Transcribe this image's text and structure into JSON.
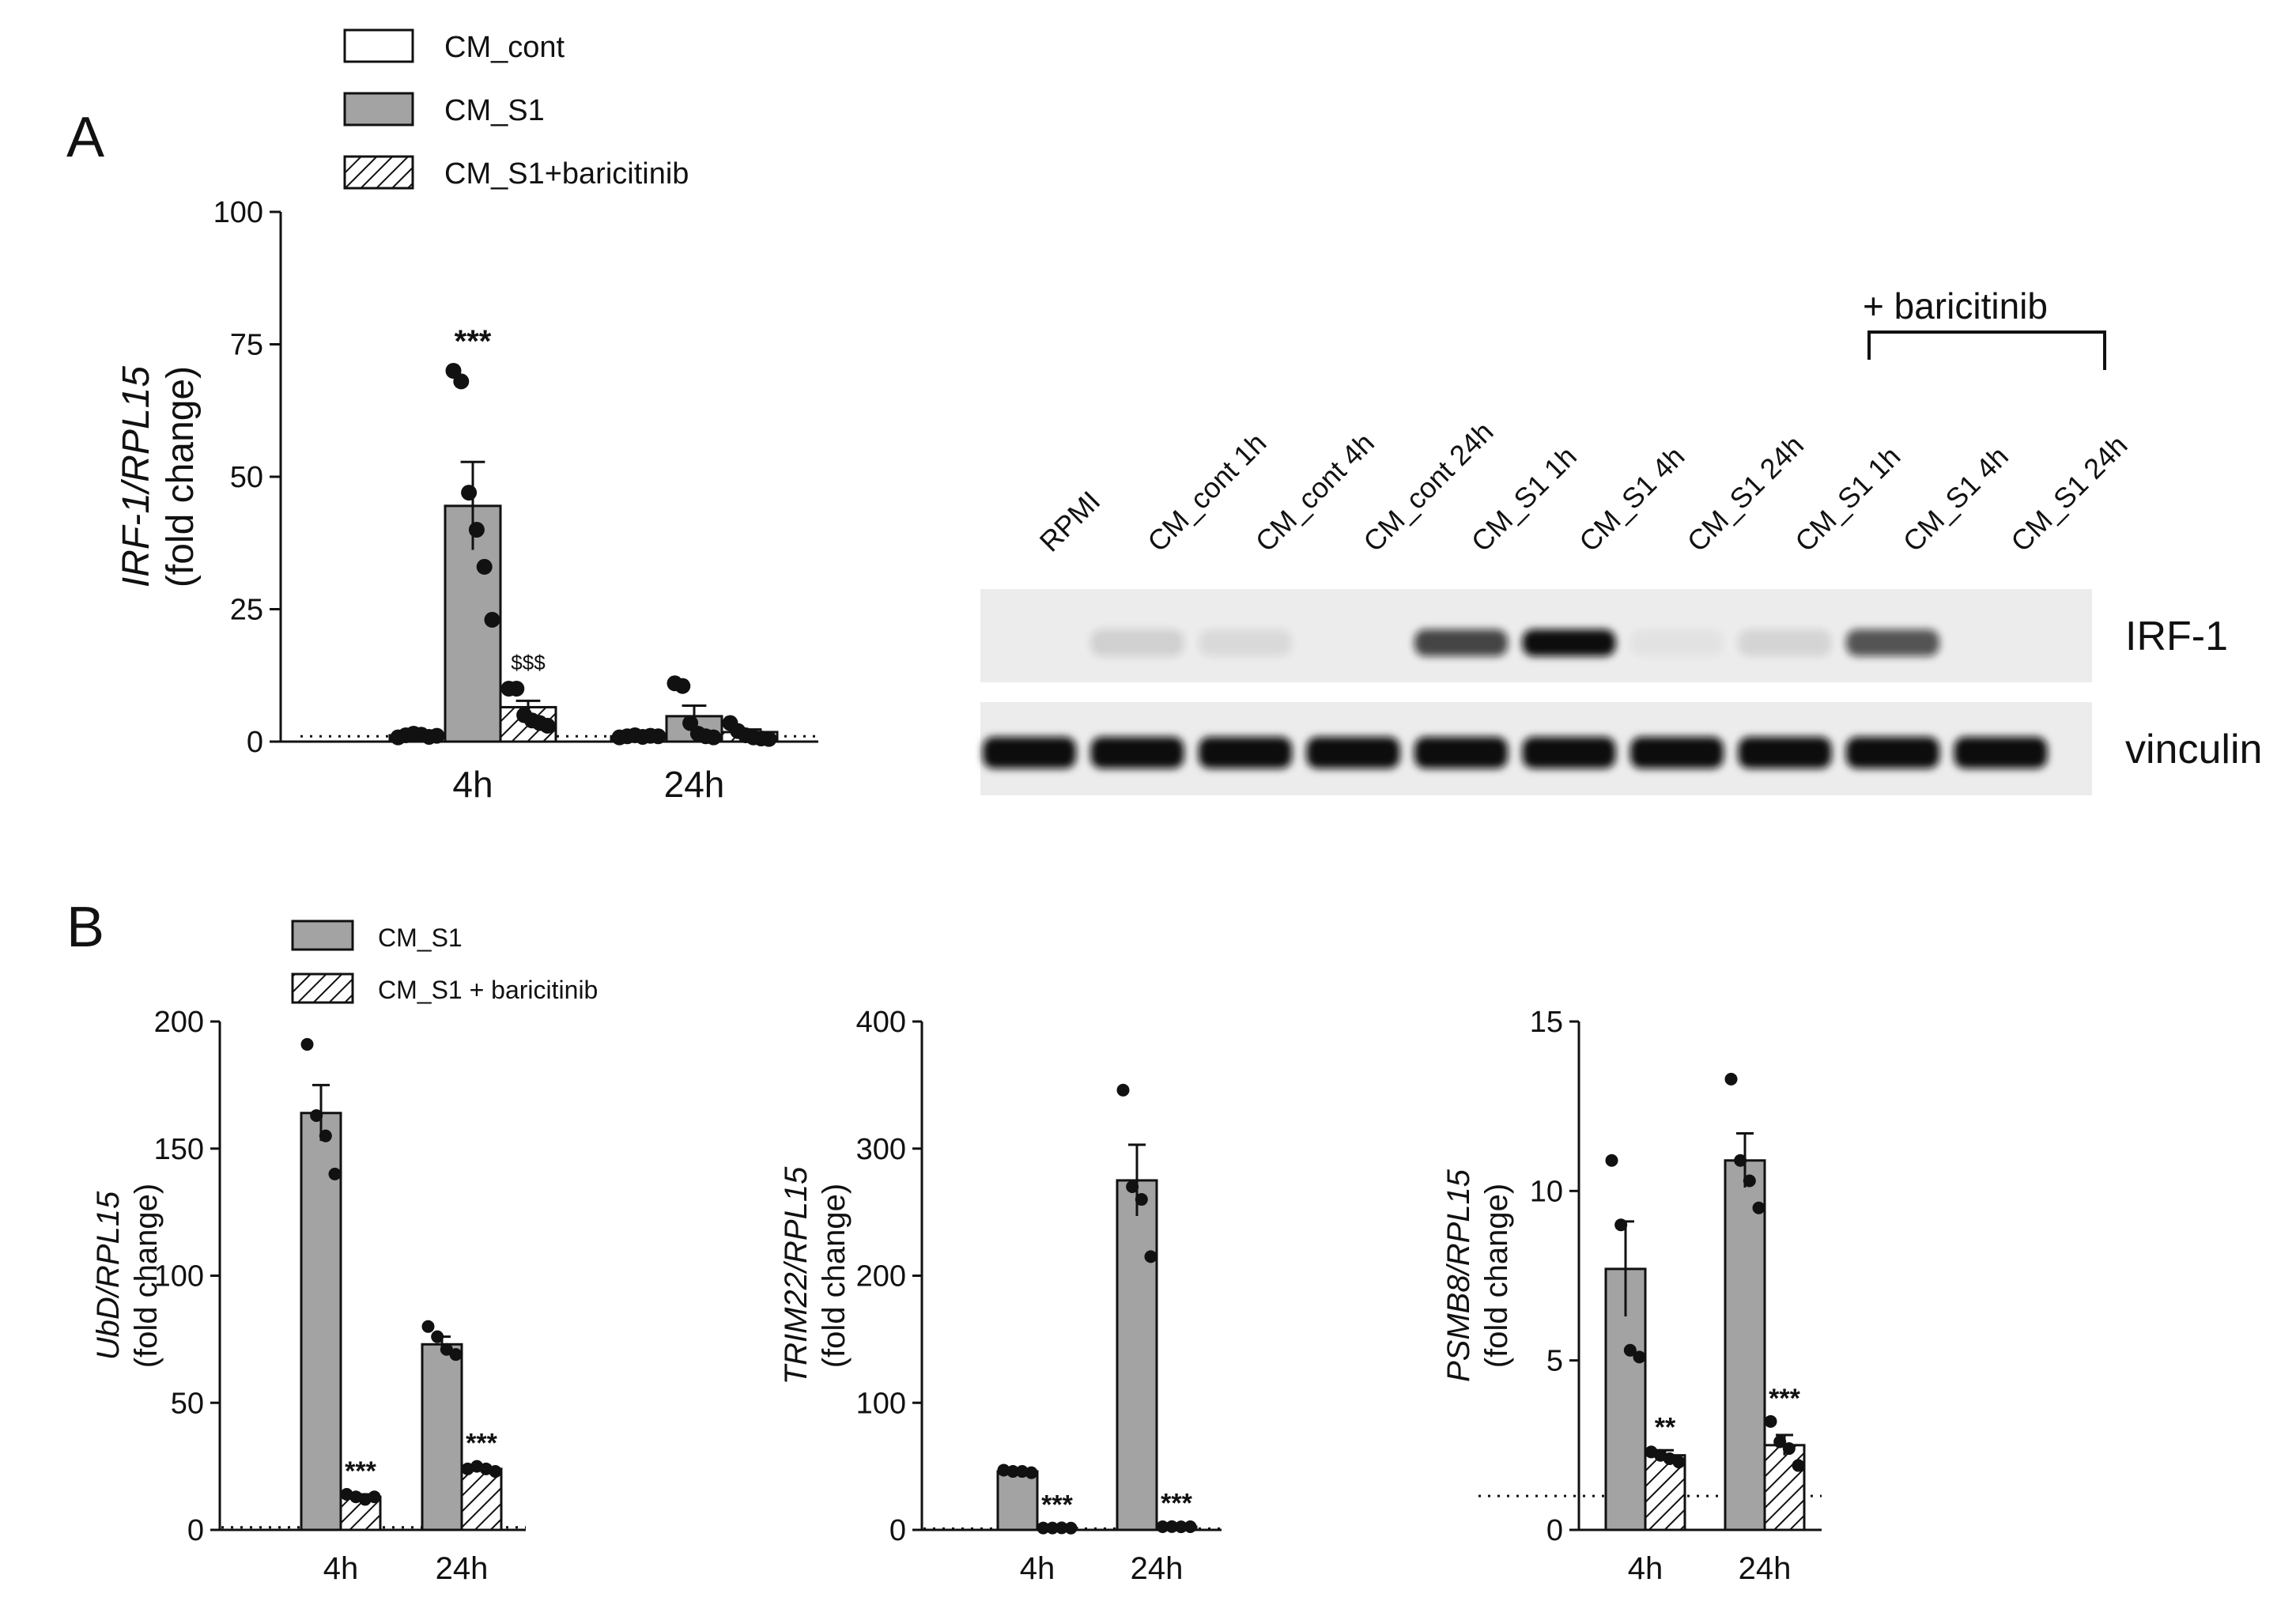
{
  "figure": {
    "panel_a_label": "A",
    "panel_b_label": "B",
    "legend_a": [
      {
        "label": "CM_cont",
        "style": "open"
      },
      {
        "label": "CM_S1",
        "style": "grey"
      },
      {
        "label": "CM_S1+baricitinib",
        "style": "hatched"
      }
    ],
    "legend_b": [
      {
        "label": "CM_S1",
        "style": "grey"
      },
      {
        "label": "CM_S1 + baricitinib",
        "style": "hatched"
      }
    ]
  },
  "blot": {
    "bracket_label": "+ baricitinib",
    "lanes": [
      "RPMI",
      "CM_cont 1h",
      "CM_cont 4h",
      "CM_cont 24h",
      "CM_S1 1h",
      "CM_S1 4h",
      "CM_S1 24h",
      "CM_S1 1h",
      "CM_S1 4h",
      "CM_S1 24h"
    ],
    "rows": [
      {
        "label": "IRF-1",
        "intensity": [
          0,
          0.12,
          0.08,
          0,
          0.75,
          1.0,
          0.04,
          0.1,
          0.68,
          0
        ]
      },
      {
        "label": "vinculin",
        "intensity": [
          1,
          1,
          1,
          1,
          1,
          1,
          1,
          1,
          1,
          1
        ]
      }
    ]
  },
  "chart_data": [
    {
      "type": "bar",
      "panel": "A",
      "ylabel_gene": "IRF-1/RPL15",
      "ylabel_unit": "(fold change)",
      "ylim": [
        0,
        100
      ],
      "yticks": [
        "0",
        "25",
        "50",
        "75",
        "100"
      ],
      "categories": [
        "4h",
        "24h"
      ],
      "baseline": 1,
      "series": [
        {
          "name": "CM_cont",
          "style": "open",
          "values": [
            1.2,
            1.0
          ],
          "sem": [
            0.3,
            0.3
          ],
          "points": [
            [
              0.8,
              1.2,
              1.5,
              1.3,
              0.9,
              1.1
            ],
            [
              0.8,
              1.0,
              1.2,
              0.9,
              1.1,
              1.0
            ]
          ]
        },
        {
          "name": "CM_S1",
          "style": "grey",
          "values": [
            44.5,
            4.8
          ],
          "sem": [
            8.3,
            2.0
          ],
          "points": [
            [
              70,
              68,
              47,
              40,
              33,
              23
            ],
            [
              11,
              10.5,
              3.5,
              1.5,
              1.0,
              0.8
            ]
          ]
        },
        {
          "name": "CM_S1+baricitinib",
          "style": "hatched",
          "values": [
            6.5,
            1.8
          ],
          "sem": [
            1.2,
            0.5
          ],
          "points": [
            [
              10,
              10,
              5,
              4,
              3.5,
              3
            ],
            [
              3.5,
              2,
              1.2,
              0.8,
              0.6,
              0.5
            ]
          ]
        }
      ],
      "annotations": [
        {
          "series": "CM_S1",
          "category": "4h",
          "text": "***"
        },
        {
          "series": "CM_S1+baricitinib",
          "category": "4h",
          "text": "$$$"
        }
      ]
    },
    {
      "type": "bar",
      "panel": "B",
      "ylabel_gene": "UbD/RPL15",
      "ylabel_unit": "(fold change)",
      "ylim": [
        0,
        200
      ],
      "yticks": [
        "0",
        "50",
        "100",
        "150",
        "200"
      ],
      "categories": [
        "4h",
        "24h"
      ],
      "baseline": 1,
      "series": [
        {
          "name": "CM_S1",
          "style": "grey",
          "values": [
            164,
            73
          ],
          "sem": [
            11,
            3
          ],
          "points": [
            [
              191,
              163,
              155,
              140
            ],
            [
              80,
              76,
              71,
              69
            ]
          ]
        },
        {
          "name": "CM_S1 + baricitinib",
          "style": "hatched",
          "values": [
            13,
            24
          ],
          "sem": [
            1,
            0.6
          ],
          "points": [
            [
              14,
              13,
              12,
              13
            ],
            [
              24,
              25,
              24,
              23
            ]
          ]
        }
      ],
      "annotations": [
        {
          "series": "CM_S1 + baricitinib",
          "category": "4h",
          "text": "***"
        },
        {
          "series": "CM_S1 + baricitinib",
          "category": "24h",
          "text": "***"
        }
      ]
    },
    {
      "type": "bar",
      "panel": "B",
      "ylabel_gene": "TRIM22/RPL15",
      "ylabel_unit": "(fold change)",
      "ylim": [
        0,
        400
      ],
      "yticks": [
        "0",
        "100",
        "200",
        "300",
        "400"
      ],
      "categories": [
        "4h",
        "24h"
      ],
      "baseline": 1,
      "series": [
        {
          "name": "CM_S1",
          "style": "grey",
          "values": [
            46,
            275
          ],
          "sem": [
            1.5,
            28
          ],
          "points": [
            [
              47,
              46,
              46,
              45
            ],
            [
              346,
              270,
              260,
              215
            ]
          ]
        },
        {
          "name": "CM_S1 + baricitinib",
          "style": "hatched",
          "values": [
            1.5,
            2.5
          ],
          "sem": [
            0.2,
            0.3
          ],
          "points": [
            [
              1.5,
              1.5,
              1.6,
              1.4
            ],
            [
              2.5,
              2.6,
              2.4,
              2.5
            ]
          ]
        }
      ],
      "annotations": [
        {
          "series": "CM_S1 + baricitinib",
          "category": "4h",
          "text": "***"
        },
        {
          "series": "CM_S1 + baricitinib",
          "category": "24h",
          "text": "***"
        }
      ]
    },
    {
      "type": "bar",
      "panel": "B",
      "ylabel_gene": "PSMB8/RPL15",
      "ylabel_unit": "(fold change)",
      "ylim": [
        0,
        15
      ],
      "yticks": [
        "0",
        "5",
        "10",
        "15"
      ],
      "categories": [
        "4h",
        "24h"
      ],
      "baseline": 1,
      "series": [
        {
          "name": "CM_S1",
          "style": "grey",
          "values": [
            7.7,
            10.9
          ],
          "sem": [
            1.4,
            0.8
          ],
          "points": [
            [
              10.9,
              9.0,
              5.3,
              5.1
            ],
            [
              13.3,
              10.9,
              10.3,
              9.5
            ]
          ]
        },
        {
          "name": "CM_S1 + baricitinib",
          "style": "hatched",
          "values": [
            2.2,
            2.5
          ],
          "sem": [
            0.15,
            0.3
          ],
          "points": [
            [
              2.3,
              2.2,
              2.1,
              2.0
            ],
            [
              3.2,
              2.6,
              2.4,
              1.9
            ]
          ]
        }
      ],
      "annotations": [
        {
          "series": "CM_S1 + baricitinib",
          "category": "4h",
          "text": "**"
        },
        {
          "series": "CM_S1 + baricitinib",
          "category": "24h",
          "text": "***"
        }
      ]
    }
  ]
}
